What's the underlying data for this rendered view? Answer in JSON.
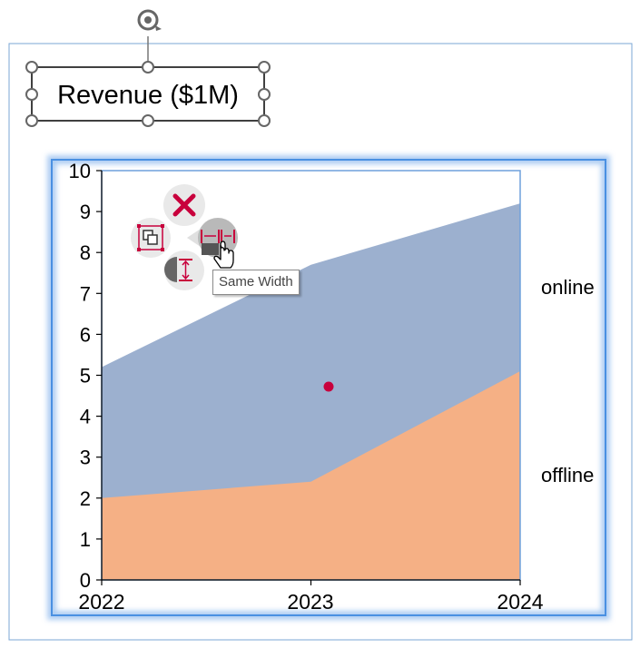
{
  "title_box": {
    "text": "Revenue ($1M)"
  },
  "tooltip": {
    "text": "Same Width"
  },
  "icons": {
    "rotate": "rotate-handle-icon",
    "delete": "close-icon",
    "group": "group-icon",
    "same_width": "same-width-icon",
    "same_height": "same-height-icon",
    "cursor": "hand-pointer-icon"
  },
  "colors": {
    "online": "#9cb0cf",
    "offline": "#f5b085",
    "accent": "#c8003c",
    "frame": "#4a90e2"
  },
  "chart_data": {
    "type": "area",
    "stacked": false,
    "x": [
      "2022",
      "2023",
      "2024"
    ],
    "ylim": [
      0,
      10
    ],
    "yticks": [
      0,
      1,
      2,
      3,
      4,
      5,
      6,
      7,
      8,
      9,
      10
    ],
    "series": [
      {
        "name": "online",
        "values": [
          5.2,
          7.7,
          9.2
        ]
      },
      {
        "name": "offline",
        "values": [
          2.0,
          2.4,
          5.1
        ]
      }
    ],
    "grid": false,
    "legend": "right"
  }
}
